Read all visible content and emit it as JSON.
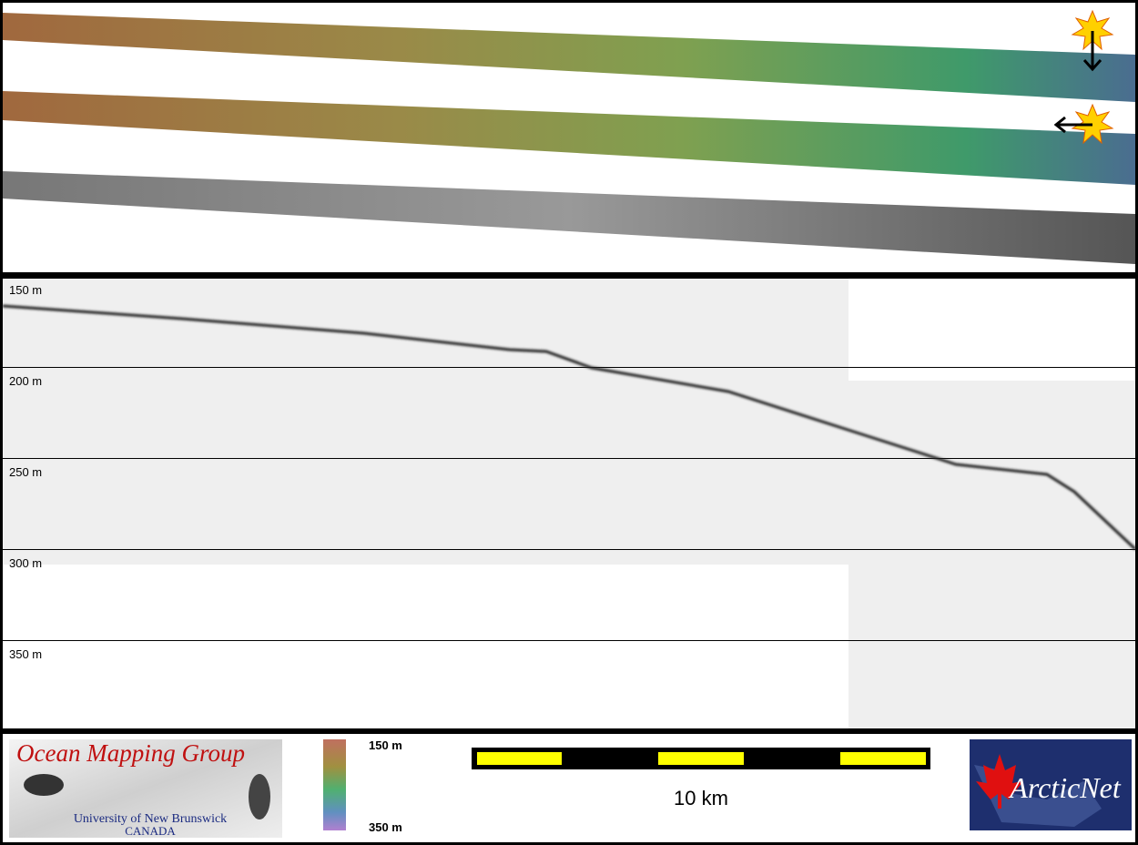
{
  "profile": {
    "depth_labels": [
      "150 m",
      "200 m",
      "250 m",
      "300 m",
      "350 m"
    ]
  },
  "logo": {
    "title": "Ocean Mapping Group",
    "university": "University of New Brunswick",
    "country": "CANADA"
  },
  "colorbar": {
    "top_label": "150 m",
    "bottom_label": "350 m"
  },
  "scale_bar": {
    "label": "10 km"
  },
  "partner_logo": {
    "name": "ArcticNet"
  }
}
